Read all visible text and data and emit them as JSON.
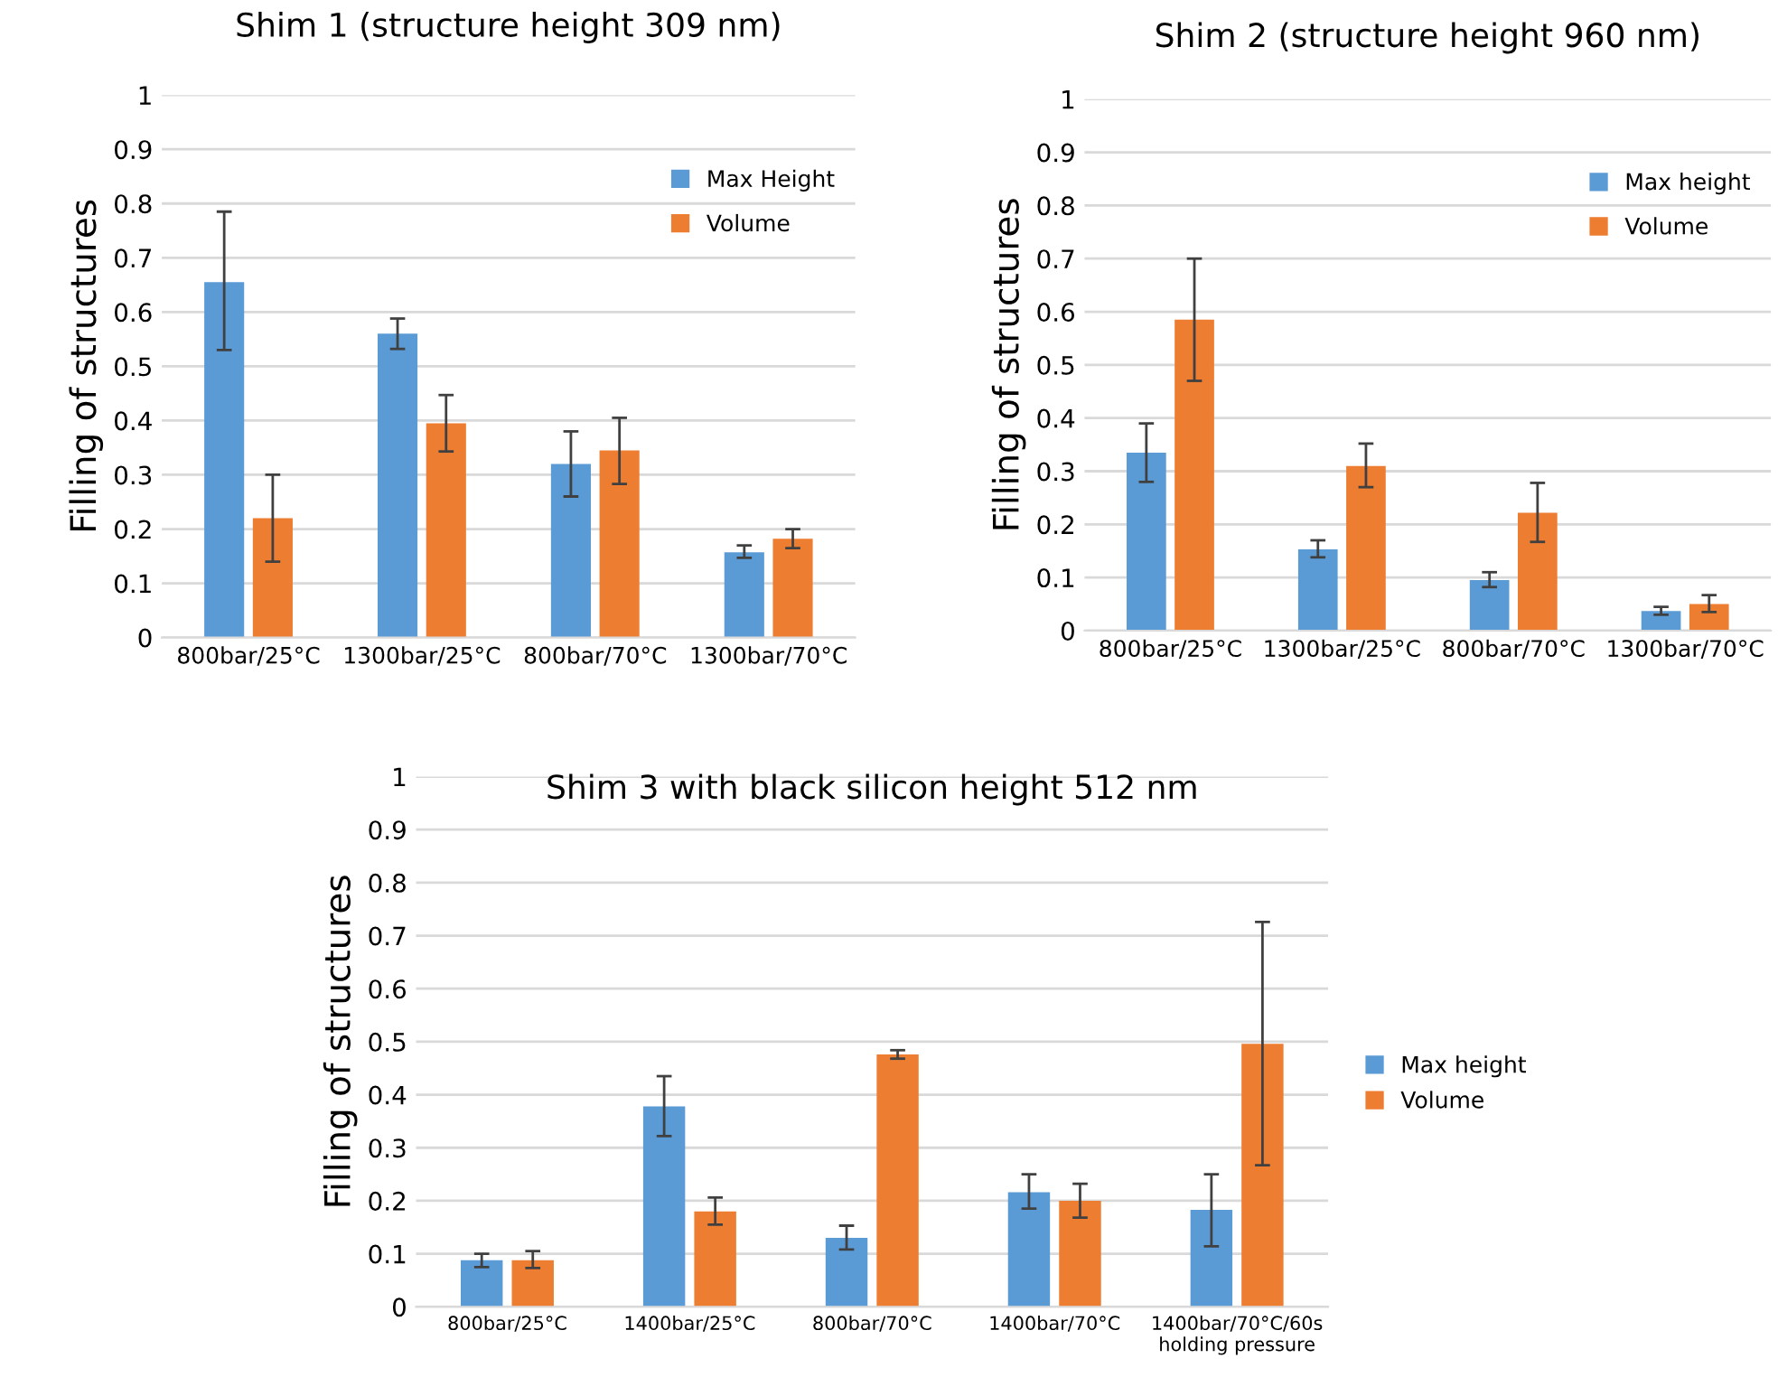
{
  "chart_data": [
    {
      "type": "bar",
      "title": "Shim 1 (structure height 309 nm)",
      "ylabel": "Filling of structures",
      "categories": [
        "800bar/25°C",
        "1300bar/25°C",
        "800bar/70°C",
        "1300bar/70°C"
      ],
      "ylim": [
        0,
        1
      ],
      "yticks": [
        0,
        0.1,
        0.2,
        0.3,
        0.4,
        0.5,
        0.6,
        0.7,
        0.8,
        0.9,
        1
      ],
      "grid": "y",
      "legend": "top right",
      "series": [
        {
          "name": "Max Height",
          "color": "#5b9bd5",
          "values": [
            0.655,
            0.56,
            0.32,
            0.157
          ],
          "errors": [
            [
              0.53,
              0.785
            ],
            [
              0.532,
              0.588
            ],
            [
              0.26,
              0.38
            ],
            [
              0.147,
              0.17
            ]
          ]
        },
        {
          "name": "Volume",
          "color": "#ed7d31",
          "values": [
            0.22,
            0.395,
            0.345,
            0.182
          ],
          "errors": [
            [
              0.14,
              0.3
            ],
            [
              0.343,
              0.447
            ],
            [
              0.283,
              0.405
            ],
            [
              0.165,
              0.2
            ]
          ]
        }
      ]
    },
    {
      "type": "bar",
      "title": "Shim 2 (structure height 960 nm)",
      "ylabel": "Filling of structures",
      "categories": [
        "800bar/25°C",
        "1300bar/25°C",
        "800bar/70°C",
        "1300bar/70°C"
      ],
      "ylim": [
        0,
        1
      ],
      "yticks": [
        0,
        0.1,
        0.2,
        0.3,
        0.4,
        0.5,
        0.6,
        0.7,
        0.8,
        0.9,
        1
      ],
      "grid": "y",
      "legend": "top right",
      "series": [
        {
          "name": "Max height",
          "color": "#5b9bd5",
          "values": [
            0.335,
            0.153,
            0.095,
            0.037
          ],
          "errors": [
            [
              0.28,
              0.39
            ],
            [
              0.138,
              0.17
            ],
            [
              0.082,
              0.11
            ],
            [
              0.03,
              0.045
            ]
          ]
        },
        {
          "name": "Volume",
          "color": "#ed7d31",
          "values": [
            0.585,
            0.31,
            0.222,
            0.05
          ],
          "errors": [
            [
              0.47,
              0.7
            ],
            [
              0.27,
              0.352
            ],
            [
              0.167,
              0.278
            ],
            [
              0.035,
              0.067
            ]
          ]
        }
      ]
    },
    {
      "type": "bar",
      "title": "Shim 3 with black silicon height 512 nm",
      "ylabel": "Filling of structures",
      "categories": [
        "800bar/25°C",
        "1400bar/25°C",
        "800bar/70°C",
        "1400bar/70°C",
        "1400bar/70°C/60s\nholding pressure"
      ],
      "ylim": [
        0,
        1
      ],
      "yticks": [
        0,
        0.1,
        0.2,
        0.3,
        0.4,
        0.5,
        0.6,
        0.7,
        0.8,
        0.9,
        1
      ],
      "grid": "y",
      "legend": "right",
      "series": [
        {
          "name": "Max height",
          "color": "#5b9bd5",
          "values": [
            0.088,
            0.378,
            0.13,
            0.216,
            0.183
          ],
          "errors": [
            [
              0.075,
              0.1
            ],
            [
              0.322,
              0.435
            ],
            [
              0.108,
              0.153
            ],
            [
              0.185,
              0.25
            ],
            [
              0.114,
              0.25
            ]
          ]
        },
        {
          "name": "Volume",
          "color": "#ed7d31",
          "values": [
            0.088,
            0.18,
            0.476,
            0.2,
            0.496
          ],
          "errors": [
            [
              0.073,
              0.105
            ],
            [
              0.155,
              0.206
            ],
            [
              0.468,
              0.484
            ],
            [
              0.168,
              0.232
            ],
            [
              0.267,
              0.726
            ]
          ]
        }
      ]
    }
  ]
}
